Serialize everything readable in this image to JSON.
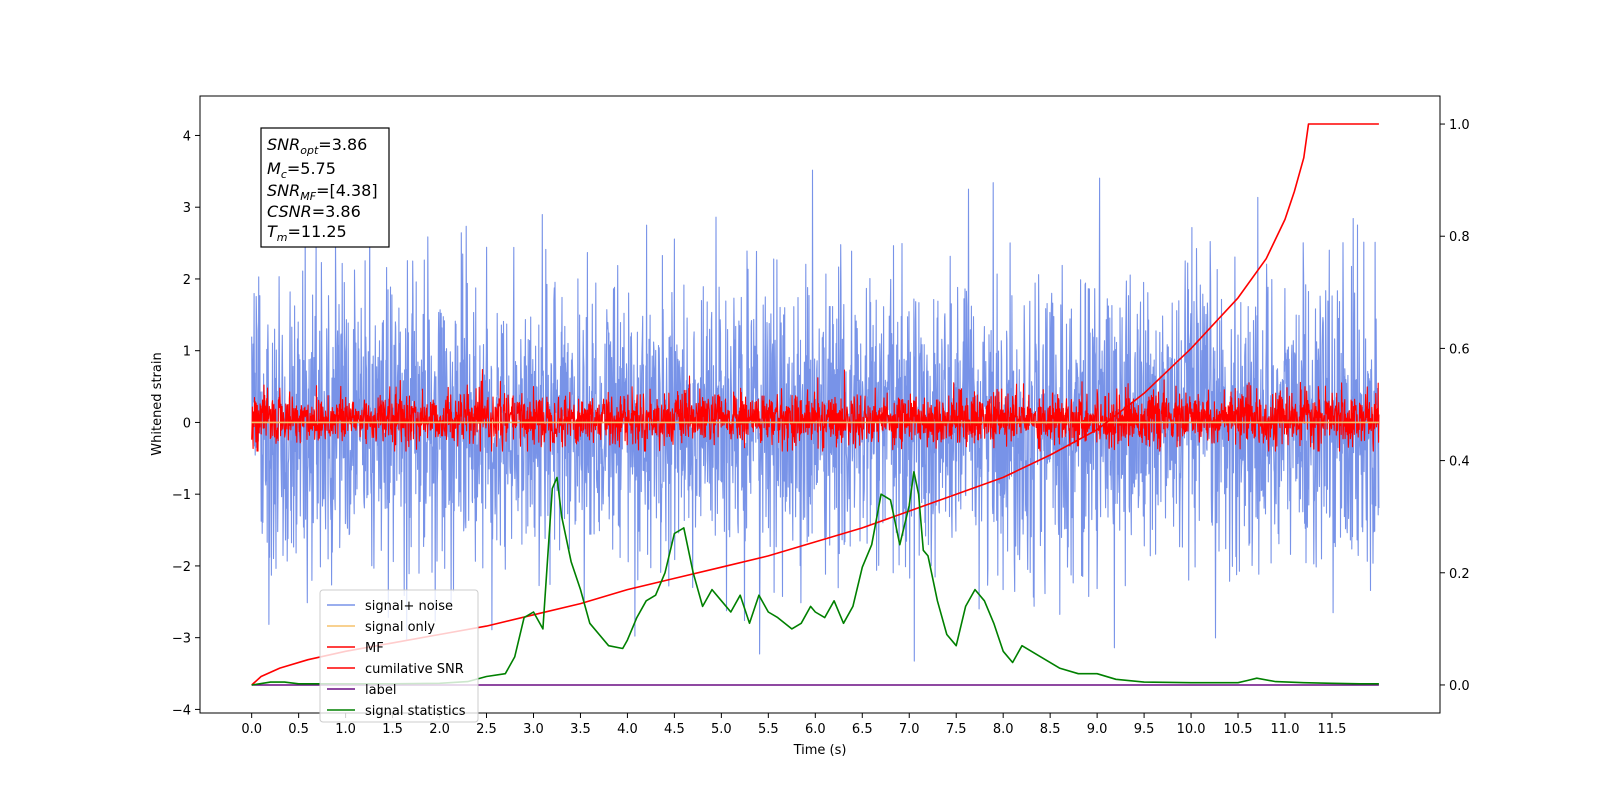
{
  "chart_data": {
    "type": "line",
    "title": "",
    "xlabel": "Time (s)",
    "ylabel": "Whitened strain",
    "y2label": "",
    "xlim": [
      -0.55,
      12.65
    ],
    "ylim": [
      -4.05,
      4.55
    ],
    "y2lim": [
      -0.05,
      1.05
    ],
    "xticks": [
      0.0,
      0.5,
      1.0,
      1.5,
      2.0,
      2.5,
      3.0,
      3.5,
      4.0,
      4.5,
      5.0,
      5.5,
      6.0,
      6.5,
      7.0,
      7.5,
      8.0,
      8.5,
      9.0,
      9.5,
      10.0,
      10.5,
      11.0,
      11.5
    ],
    "xtick_labels": [
      "0.0",
      "0.5",
      "1.0",
      "1.5",
      "2.0",
      "2.5",
      "3.0",
      "3.5",
      "4.0",
      "4.5",
      "5.0",
      "5.5",
      "6.0",
      "6.5",
      "7.0",
      "7.5",
      "8.0",
      "8.5",
      "9.0",
      "9.5",
      "10.0",
      "10.5",
      "11.0",
      "11.5"
    ],
    "yticks": [
      -4,
      -3,
      -2,
      -1,
      0,
      1,
      2,
      3,
      4
    ],
    "ytick_labels": [
      "−4",
      "−3",
      "−2",
      "−1",
      "0",
      "1",
      "2",
      "3",
      "4"
    ],
    "y2ticks": [
      0.0,
      0.2,
      0.4,
      0.6,
      0.8,
      1.0
    ],
    "y2tick_labels": [
      "0.0",
      "0.2",
      "0.4",
      "0.6",
      "0.8",
      "1.0"
    ],
    "grid": false,
    "legend_position": "lower-left",
    "info_box": {
      "position": "top-left",
      "lines": [
        {
          "sym": "SNR",
          "sub": "opt",
          "val": "=3.86"
        },
        {
          "sym": "M",
          "sub": "c",
          "val": "=5.75"
        },
        {
          "sym": "SNR",
          "sub": "MF",
          "val": "=[4.38]"
        },
        {
          "sym": "CSNR",
          "sub": "",
          "val": "=3.86"
        },
        {
          "sym": "T",
          "sub": "m",
          "val": "=11.25"
        }
      ]
    },
    "series": [
      {
        "name": "signal+ noise",
        "axis": "left",
        "color": "#7893e8",
        "style": "noise",
        "x_range": [
          0.0,
          12.0
        ],
        "mean": 0.0,
        "std": 1.0,
        "peak_max": 4.15,
        "peak_min": -3.55
      },
      {
        "name": "signal only",
        "axis": "left",
        "color": "#f5c26b",
        "style": "flat",
        "x_range": [
          0.0,
          12.0
        ],
        "value": 0.0
      },
      {
        "name": "MF",
        "axis": "left",
        "color": "#ff0000",
        "style": "noise",
        "x_range": [
          0.0,
          12.0
        ],
        "mean": 0.05,
        "std": 0.18,
        "peak_max": 1.0,
        "peak_min": -0.4
      },
      {
        "name": "cumilative SNR",
        "axis": "right",
        "color": "#ff0000",
        "style": "curve",
        "x": [
          0.0,
          0.1,
          0.3,
          0.6,
          1.0,
          1.5,
          2.0,
          2.5,
          3.0,
          3.5,
          4.0,
          4.5,
          5.0,
          5.5,
          6.0,
          6.5,
          7.0,
          7.5,
          8.0,
          8.5,
          9.0,
          9.5,
          10.0,
          10.5,
          10.8,
          11.0,
          11.1,
          11.2,
          11.25,
          12.0
        ],
        "y": [
          0.0,
          0.015,
          0.03,
          0.045,
          0.06,
          0.075,
          0.09,
          0.105,
          0.125,
          0.145,
          0.17,
          0.19,
          0.21,
          0.23,
          0.255,
          0.28,
          0.31,
          0.34,
          0.37,
          0.41,
          0.455,
          0.52,
          0.6,
          0.69,
          0.76,
          0.83,
          0.88,
          0.94,
          1.0,
          1.0
        ]
      },
      {
        "name": "label",
        "axis": "right",
        "color": "#6a0d83",
        "style": "flat",
        "x_range": [
          0.0,
          12.0
        ],
        "value": 0.0
      },
      {
        "name": "signal statistics",
        "axis": "right",
        "color": "#008000",
        "style": "curve",
        "x": [
          0.0,
          0.2,
          0.35,
          0.5,
          1.0,
          1.5,
          2.0,
          2.3,
          2.5,
          2.7,
          2.8,
          2.9,
          3.0,
          3.1,
          3.2,
          3.25,
          3.3,
          3.4,
          3.5,
          3.6,
          3.8,
          3.95,
          4.0,
          4.1,
          4.2,
          4.3,
          4.4,
          4.5,
          4.6,
          4.7,
          4.8,
          4.9,
          5.0,
          5.1,
          5.2,
          5.3,
          5.4,
          5.5,
          5.6,
          5.75,
          5.85,
          5.95,
          6.0,
          6.1,
          6.2,
          6.3,
          6.4,
          6.5,
          6.6,
          6.7,
          6.8,
          6.9,
          7.0,
          7.05,
          7.1,
          7.15,
          7.2,
          7.3,
          7.4,
          7.5,
          7.6,
          7.7,
          7.8,
          7.9,
          8.0,
          8.1,
          8.2,
          8.4,
          8.6,
          8.8,
          9.0,
          9.2,
          9.5,
          10.0,
          10.5,
          10.6,
          10.7,
          10.9,
          11.2,
          11.5,
          11.8,
          12.0
        ],
        "y": [
          0.0,
          0.005,
          0.005,
          0.002,
          0.002,
          0.002,
          0.003,
          0.006,
          0.015,
          0.02,
          0.05,
          0.12,
          0.13,
          0.1,
          0.35,
          0.37,
          0.3,
          0.22,
          0.17,
          0.11,
          0.07,
          0.065,
          0.08,
          0.12,
          0.15,
          0.16,
          0.2,
          0.27,
          0.28,
          0.2,
          0.14,
          0.17,
          0.15,
          0.13,
          0.16,
          0.11,
          0.16,
          0.13,
          0.12,
          0.1,
          0.11,
          0.14,
          0.13,
          0.12,
          0.15,
          0.11,
          0.14,
          0.21,
          0.25,
          0.34,
          0.33,
          0.25,
          0.32,
          0.38,
          0.34,
          0.24,
          0.23,
          0.15,
          0.09,
          0.07,
          0.14,
          0.17,
          0.15,
          0.11,
          0.06,
          0.04,
          0.07,
          0.05,
          0.03,
          0.02,
          0.02,
          0.01,
          0.005,
          0.004,
          0.004,
          0.008,
          0.012,
          0.006,
          0.004,
          0.003,
          0.002,
          0.002
        ]
      }
    ]
  }
}
